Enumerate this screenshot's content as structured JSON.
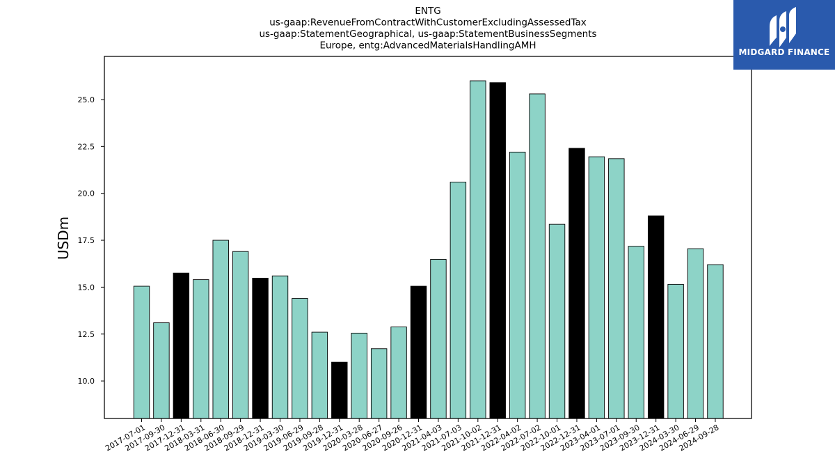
{
  "chart_data": {
    "type": "bar",
    "title_lines": [
      "ENTG",
      "us-gaap:RevenueFromContractWithCustomerExcludingAssessedTax",
      "us-gaap:StatementGeographical, us-gaap:StatementBusinessSegments",
      "Europe, entg:AdvancedMaterialsHandlingAMH"
    ],
    "ylabel": "USDm",
    "xlabel": "",
    "ylim": [
      8.0,
      27.3
    ],
    "yticks": [
      "10.0",
      "12.5",
      "15.0",
      "17.5",
      "20.0",
      "22.5",
      "25.0"
    ],
    "categories": [
      "2017-07-01",
      "2017-09-30",
      "2017-12-31",
      "2018-03-31",
      "2018-06-30",
      "2018-09-29",
      "2018-12-31",
      "2019-03-30",
      "2019-06-29",
      "2019-09-28",
      "2019-12-31",
      "2020-03-28",
      "2020-06-27",
      "2020-09-26",
      "2020-12-31",
      "2021-04-03",
      "2021-07-03",
      "2021-10-02",
      "2021-12-31",
      "2022-04-02",
      "2022-07-02",
      "2022-10-01",
      "2022-12-31",
      "2023-04-01",
      "2023-07-01",
      "2023-09-30",
      "2023-12-31",
      "2024-03-30",
      "2024-06-29",
      "2024-09-28"
    ],
    "values": [
      15.05,
      13.1,
      15.75,
      15.4,
      17.5,
      16.9,
      15.48,
      15.6,
      14.4,
      12.6,
      11.0,
      12.55,
      11.72,
      12.88,
      15.05,
      16.48,
      20.6,
      26.0,
      25.9,
      22.2,
      25.3,
      18.35,
      22.4,
      21.95,
      21.85,
      17.18,
      18.8,
      15.15,
      17.05,
      16.2
    ],
    "highlight": [
      false,
      false,
      true,
      false,
      false,
      false,
      true,
      false,
      false,
      false,
      true,
      false,
      false,
      false,
      true,
      false,
      false,
      false,
      true,
      false,
      false,
      false,
      true,
      false,
      false,
      false,
      true,
      false,
      false,
      false
    ],
    "colors": {
      "bar": "#8dd3c7",
      "highlight": "#000000",
      "edge": "#000000"
    },
    "grid": false,
    "legend": "none"
  },
  "logo": {
    "text": "MIDGARD FINANCE",
    "icon": "midgard-logo-icon",
    "background": "#2a5aad"
  }
}
